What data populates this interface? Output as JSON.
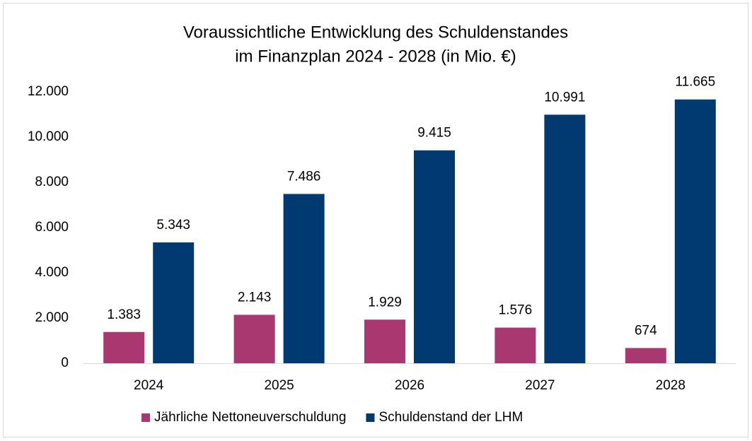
{
  "chart_data": {
    "type": "bar",
    "title": [
      "Voraussichtliche Entwicklung des Schuldenstandes",
      "im Finanzplan 2024 - 2028 (in Mio. €)"
    ],
    "categories": [
      "2024",
      "2025",
      "2026",
      "2027",
      "2028"
    ],
    "series": [
      {
        "name": "Jährliche Nettoneuverschuldung",
        "color": "#a8386f",
        "values": [
          1383,
          2143,
          1929,
          1576,
          674
        ],
        "value_labels": [
          "1.383",
          "2.143",
          "1.929",
          "1.576",
          "674"
        ]
      },
      {
        "name": "Schuldenstand der LHM",
        "color": "#003a70",
        "values": [
          5343,
          7486,
          9415,
          10991,
          11665
        ],
        "value_labels": [
          "5.343",
          "7.486",
          "9.415",
          "10.991",
          "11.665"
        ]
      }
    ],
    "ylim": [
      0,
      12000
    ],
    "yticks": [
      0,
      {
        "value": 2000,
        "label": "2.000"
      },
      {
        "value": 4000,
        "label": "4.000"
      },
      {
        "value": 6000,
        "label": "6.000"
      },
      {
        "value": 8000,
        "label": "8.000"
      },
      {
        "value": 10000,
        "label": "10.000"
      },
      {
        "value": 12000,
        "label": "12.000"
      }
    ],
    "grid": false,
    "legend": "bottom"
  }
}
